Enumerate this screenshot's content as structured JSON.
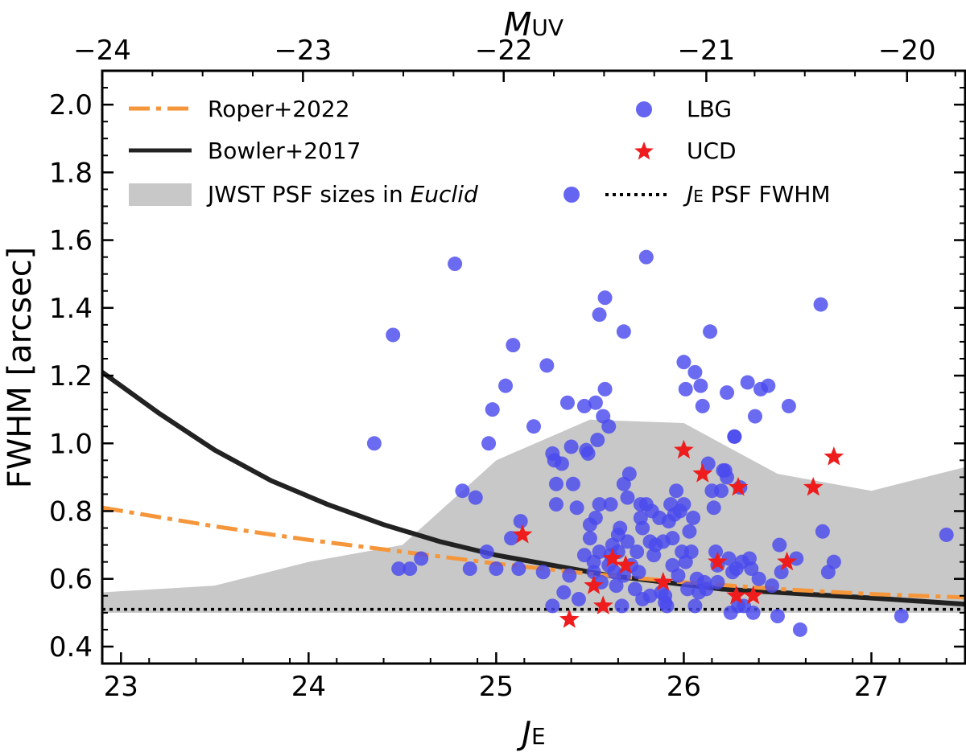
{
  "chart_data": {
    "type": "scatter",
    "xlabel": "J",
    "xlabel_sub": "E",
    "ylabel": "FWHM [arcsec]",
    "top_xlabel": "M",
    "top_xlabel_sub": "UV",
    "xlim": [
      22.9,
      27.5
    ],
    "ylim": [
      0.35,
      2.1
    ],
    "x_ticks": [
      23,
      24,
      25,
      26,
      27
    ],
    "y_ticks": [
      0.4,
      0.6,
      0.8,
      1.0,
      1.2,
      1.4,
      1.6,
      1.8,
      2.0
    ],
    "x_tick_labels": [
      "23",
      "24",
      "25",
      "26",
      "27"
    ],
    "y_tick_labels": [
      "0.4",
      "0.6",
      "0.8",
      "1.0",
      "1.2",
      "1.4",
      "1.6",
      "1.8",
      "2.0"
    ],
    "top_ticks_J": [
      22.9,
      23.97,
      25.04,
      26.12,
      27.19
    ],
    "top_tick_labels": [
      "−24",
      "−23",
      "−22",
      "−21",
      "−20"
    ],
    "legend": {
      "roper": "Roper+2022",
      "bowler": "Bowler+2017",
      "jwst_prefix": "JWST PSF sizes in ",
      "jwst_italic": "Euclid",
      "lbg": "LBG",
      "ucd": "UCD",
      "psf_prefix": "J",
      "psf_sub": "E",
      "psf_suffix": " PSF FWHM"
    },
    "colors": {
      "lbg": "#4a4aee",
      "ucd": "#ee1c1c",
      "roper": "#f5963a",
      "bowler": "#222222",
      "band": "#c8c8c8",
      "psf": "#000000"
    },
    "psf_fwhm": 0.51,
    "jwst_band": {
      "x": [
        22.9,
        23.5,
        24.0,
        24.5,
        25.0,
        25.5,
        26.0,
        26.5,
        27.0,
        27.5
      ],
      "lower": [
        0.5,
        0.5,
        0.5,
        0.5,
        0.5,
        0.5,
        0.5,
        0.5,
        0.5,
        0.5
      ],
      "upper": [
        0.56,
        0.58,
        0.65,
        0.7,
        0.95,
        1.07,
        1.06,
        0.91,
        0.86,
        0.93
      ]
    },
    "series": [
      {
        "name": "Bowler+2017",
        "style": "solid",
        "x": [
          22.9,
          23.2,
          23.5,
          23.8,
          24.1,
          24.4,
          24.7,
          25.0,
          25.3,
          25.6,
          25.9,
          26.2,
          26.5,
          26.8,
          27.1,
          27.5
        ],
        "y": [
          1.21,
          1.09,
          0.98,
          0.89,
          0.82,
          0.76,
          0.71,
          0.67,
          0.64,
          0.61,
          0.59,
          0.57,
          0.56,
          0.55,
          0.54,
          0.525
        ]
      },
      {
        "name": "Roper+2022",
        "style": "dashdot",
        "x": [
          22.9,
          23.5,
          24.0,
          24.5,
          25.0,
          25.5,
          26.0,
          26.5,
          27.0,
          27.5
        ],
        "y": [
          0.81,
          0.755,
          0.715,
          0.68,
          0.645,
          0.615,
          0.59,
          0.57,
          0.555,
          0.545
        ]
      },
      {
        "name": "LBG",
        "type": "scatter",
        "points": [
          [
            24.35,
            1.0
          ],
          [
            24.45,
            1.32
          ],
          [
            24.48,
            0.63
          ],
          [
            24.54,
            0.63
          ],
          [
            24.6,
            0.66
          ],
          [
            24.78,
            1.53
          ],
          [
            24.82,
            0.86
          ],
          [
            24.86,
            0.63
          ],
          [
            24.89,
            0.84
          ],
          [
            24.95,
            0.68
          ],
          [
            24.96,
            1.0
          ],
          [
            24.98,
            1.1
          ],
          [
            25.0,
            0.63
          ],
          [
            25.05,
            1.17
          ],
          [
            25.08,
            0.72
          ],
          [
            25.09,
            1.29
          ],
          [
            25.12,
            0.63
          ],
          [
            25.13,
            0.77
          ],
          [
            25.2,
            1.05
          ],
          [
            25.25,
            0.62
          ],
          [
            25.27,
            1.23
          ],
          [
            25.3,
            0.52
          ],
          [
            25.3,
            0.97
          ],
          [
            25.31,
            0.95
          ],
          [
            25.32,
            0.88
          ],
          [
            25.32,
            0.82
          ],
          [
            25.35,
            0.94
          ],
          [
            25.36,
            0.56
          ],
          [
            25.38,
            1.12
          ],
          [
            25.39,
            0.61
          ],
          [
            25.4,
            0.99
          ],
          [
            25.41,
            0.88
          ],
          [
            25.43,
            0.81
          ],
          [
            25.44,
            0.54
          ],
          [
            25.47,
            1.11
          ],
          [
            25.47,
            0.67
          ],
          [
            25.48,
            0.98
          ],
          [
            25.49,
            0.97
          ],
          [
            25.5,
            0.76
          ],
          [
            25.5,
            0.72
          ],
          [
            25.52,
            0.65
          ],
          [
            25.52,
            0.62
          ],
          [
            25.53,
            1.12
          ],
          [
            25.53,
            0.78
          ],
          [
            25.54,
            1.01
          ],
          [
            25.55,
            0.82
          ],
          [
            25.55,
            0.68
          ],
          [
            25.55,
            1.38
          ],
          [
            25.56,
            0.59
          ],
          [
            25.57,
            1.08
          ],
          [
            25.58,
            1.43
          ],
          [
            25.58,
            1.16
          ],
          [
            25.6,
            1.05
          ],
          [
            25.6,
            0.64
          ],
          [
            25.61,
            0.82
          ],
          [
            25.61,
            0.67
          ],
          [
            25.62,
            0.7
          ],
          [
            25.63,
            0.62
          ],
          [
            25.64,
            0.58
          ],
          [
            25.65,
            0.73
          ],
          [
            25.65,
            0.68
          ],
          [
            25.66,
            0.75
          ],
          [
            25.67,
            0.52
          ],
          [
            25.68,
            0.88
          ],
          [
            25.68,
            0.61
          ],
          [
            25.68,
            1.33
          ],
          [
            25.7,
            0.71
          ],
          [
            25.7,
            0.84
          ],
          [
            25.71,
            0.91
          ],
          [
            25.72,
            0.64
          ],
          [
            25.74,
            0.57
          ],
          [
            25.75,
            0.68
          ],
          [
            25.76,
            0.62
          ],
          [
            25.77,
            0.82
          ],
          [
            25.77,
            0.78
          ],
          [
            25.78,
            0.75
          ],
          [
            25.78,
            0.54
          ],
          [
            25.8,
            0.82
          ],
          [
            25.8,
            1.55
          ],
          [
            25.82,
            0.71
          ],
          [
            25.82,
            0.55
          ],
          [
            25.83,
            0.8
          ],
          [
            25.84,
            0.67
          ],
          [
            25.85,
            0.7
          ],
          [
            25.87,
            0.78
          ],
          [
            25.88,
            0.56
          ],
          [
            25.89,
            0.71
          ],
          [
            25.9,
            0.53
          ],
          [
            25.9,
            0.55
          ],
          [
            25.91,
            0.52
          ],
          [
            25.92,
            0.77
          ],
          [
            25.93,
            0.82
          ],
          [
            25.94,
            0.72
          ],
          [
            25.94,
            0.64
          ],
          [
            25.95,
            0.79
          ],
          [
            25.96,
            0.86
          ],
          [
            25.97,
            0.61
          ],
          [
            25.98,
            0.8
          ],
          [
            25.99,
            0.68
          ],
          [
            26.0,
            0.82
          ],
          [
            26.0,
            1.24
          ],
          [
            26.01,
            0.65
          ],
          [
            26.01,
            1.16
          ],
          [
            26.02,
            0.57
          ],
          [
            26.03,
            0.74
          ],
          [
            26.04,
            0.68
          ],
          [
            26.05,
            0.78
          ],
          [
            26.06,
            0.52
          ],
          [
            26.06,
            1.21
          ],
          [
            26.07,
            0.6
          ],
          [
            26.08,
            0.56
          ],
          [
            26.09,
            1.17
          ],
          [
            26.1,
            1.11
          ],
          [
            26.11,
            0.59
          ],
          [
            26.12,
            0.57
          ],
          [
            26.13,
            0.94
          ],
          [
            26.14,
            1.33
          ],
          [
            26.15,
            0.86
          ],
          [
            26.16,
            0.81
          ],
          [
            26.17,
            0.68
          ],
          [
            26.18,
            0.64
          ],
          [
            26.18,
            0.59
          ],
          [
            26.2,
            0.86
          ],
          [
            26.21,
            0.92
          ],
          [
            26.22,
            0.92
          ],
          [
            26.23,
            0.9
          ],
          [
            26.23,
            1.15
          ],
          [
            26.24,
            0.66
          ],
          [
            26.25,
            0.5
          ],
          [
            26.26,
            0.62
          ],
          [
            26.27,
            1.02
          ],
          [
            26.27,
            1.02
          ],
          [
            26.28,
            0.63
          ],
          [
            26.29,
            0.52
          ],
          [
            26.3,
            0.87
          ],
          [
            26.31,
            0.65
          ],
          [
            26.32,
            0.52
          ],
          [
            26.34,
            1.18
          ],
          [
            26.35,
            0.66
          ],
          [
            26.36,
            0.63
          ],
          [
            26.37,
            0.5
          ],
          [
            26.38,
            1.08
          ],
          [
            26.4,
            0.6
          ],
          [
            26.41,
            1.16
          ],
          [
            26.45,
            1.17
          ],
          [
            26.47,
            0.58
          ],
          [
            26.5,
            0.49
          ],
          [
            26.51,
            0.7
          ],
          [
            26.52,
            0.62
          ],
          [
            26.56,
            1.11
          ],
          [
            26.6,
            0.66
          ],
          [
            26.62,
            0.45
          ],
          [
            26.73,
            1.41
          ],
          [
            26.74,
            0.74
          ],
          [
            26.77,
            0.62
          ],
          [
            26.8,
            0.65
          ],
          [
            27.16,
            0.49
          ],
          [
            27.4,
            0.73
          ]
        ]
      },
      {
        "name": "UCD",
        "type": "scatter",
        "points": [
          [
            25.14,
            0.73
          ],
          [
            25.39,
            0.48
          ],
          [
            25.52,
            0.58
          ],
          [
            25.57,
            0.52
          ],
          [
            25.62,
            0.66
          ],
          [
            25.69,
            0.64
          ],
          [
            25.89,
            0.59
          ],
          [
            26.0,
            0.98
          ],
          [
            26.1,
            0.91
          ],
          [
            26.18,
            0.65
          ],
          [
            26.28,
            0.55
          ],
          [
            26.29,
            0.87
          ],
          [
            26.37,
            0.55
          ],
          [
            26.55,
            0.65
          ],
          [
            26.69,
            0.87
          ],
          [
            26.8,
            0.96
          ]
        ]
      }
    ]
  }
}
